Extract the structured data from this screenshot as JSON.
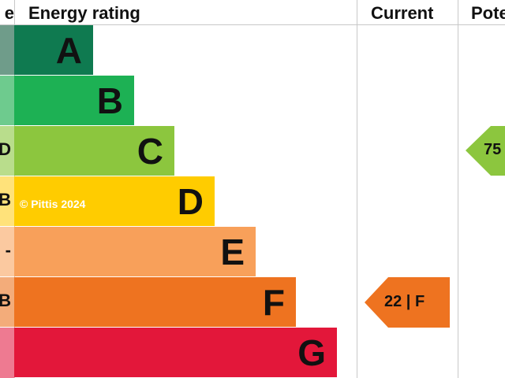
{
  "header": {
    "left_fragment": "e",
    "energy_rating": "Energy rating",
    "current": "Current",
    "potential": "Pote"
  },
  "left_strip_letters": [
    "",
    "",
    "D",
    "B",
    "-",
    "B",
    ""
  ],
  "watermark": "© Pittis 2024",
  "chart_data": {
    "type": "bar",
    "categories": [
      "A",
      "B",
      "C",
      "D",
      "E",
      "F",
      "G"
    ],
    "colors": [
      "#0f7a50",
      "#1db154",
      "#8cc63e",
      "#ffcc00",
      "#f8a05a",
      "#ee7320",
      "#e3173a"
    ],
    "strip_colors": [
      "#6f9c8a",
      "#6ecb8e",
      "#b9dd8c",
      "#ffe27a",
      "#fbc9a0",
      "#f3ac7a",
      "#ee7a91"
    ],
    "current": {
      "value": 22,
      "band": "F",
      "label": "22 | F",
      "color": "#ee7320"
    },
    "potential": {
      "value": 75,
      "band": "C",
      "label": "75",
      "color": "#8cc63e"
    }
  }
}
